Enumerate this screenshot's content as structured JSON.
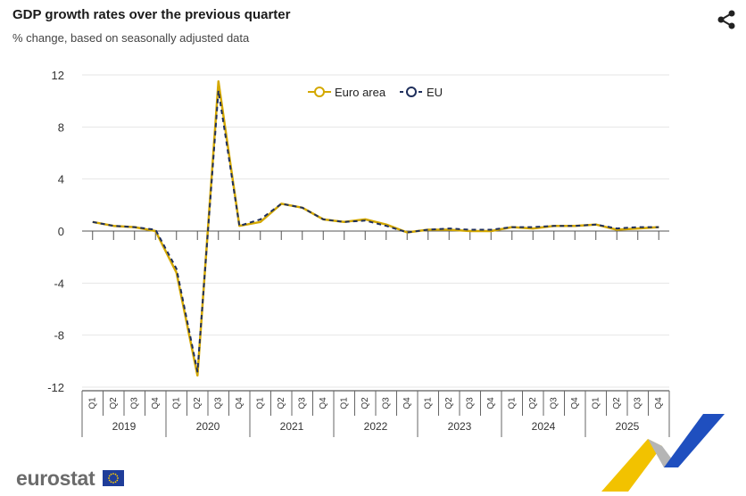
{
  "header": {
    "title": "GDP growth rates over the previous quarter",
    "subtitle": "% change, based on seasonally adjusted data"
  },
  "footer": {
    "brand": "eurostat"
  },
  "icons": {
    "share": "share-icon",
    "flag": "eu-flag-icon"
  },
  "colors": {
    "euro_area": "#d4a800",
    "eu": "#1f2f5c",
    "grid": "#e6e6e6",
    "axis": "#333333"
  },
  "chart_data": {
    "type": "line",
    "title": "GDP growth rates over the previous quarter",
    "subtitle": "% change, based on seasonally adjusted data",
    "xlabel": "",
    "ylabel": "",
    "ylim": [
      -12,
      12
    ],
    "yticks": [
      "12",
      "8",
      "4",
      "0",
      "-4",
      "-8",
      "-12"
    ],
    "ytick_values": [
      12,
      8,
      4,
      0,
      -4,
      -8,
      -12
    ],
    "grid": true,
    "legend_position": "top-center",
    "quarters": [
      "Q1",
      "Q2",
      "Q3",
      "Q4",
      "Q1",
      "Q2",
      "Q3",
      "Q4",
      "Q1",
      "Q2",
      "Q3",
      "Q4",
      "Q1",
      "Q2",
      "Q3",
      "Q4",
      "Q1",
      "Q2",
      "Q3",
      "Q4",
      "Q1",
      "Q2",
      "Q3",
      "Q4",
      "Q1",
      "Q2",
      "Q3",
      "Q4"
    ],
    "years": [
      "2019",
      "2020",
      "2021",
      "2022",
      "2023",
      "2024",
      "2025"
    ],
    "series": [
      {
        "name": "Euro area",
        "values": [
          0.7,
          0.4,
          0.3,
          0.0,
          -3.2,
          -11.1,
          11.5,
          0.4,
          0.7,
          2.1,
          1.8,
          0.9,
          0.7,
          0.9,
          0.5,
          -0.1,
          0.1,
          0.1,
          0.0,
          0.0,
          0.3,
          0.2,
          0.4,
          0.4,
          0.5,
          0.1,
          0.2,
          0.3
        ]
      },
      {
        "name": "EU",
        "values": [
          0.7,
          0.4,
          0.3,
          0.1,
          -2.9,
          -10.8,
          10.8,
          0.4,
          0.9,
          2.1,
          1.8,
          0.9,
          0.7,
          0.8,
          0.4,
          -0.1,
          0.1,
          0.2,
          0.1,
          0.1,
          0.3,
          0.3,
          0.4,
          0.4,
          0.5,
          0.2,
          0.3,
          0.3
        ]
      }
    ]
  }
}
